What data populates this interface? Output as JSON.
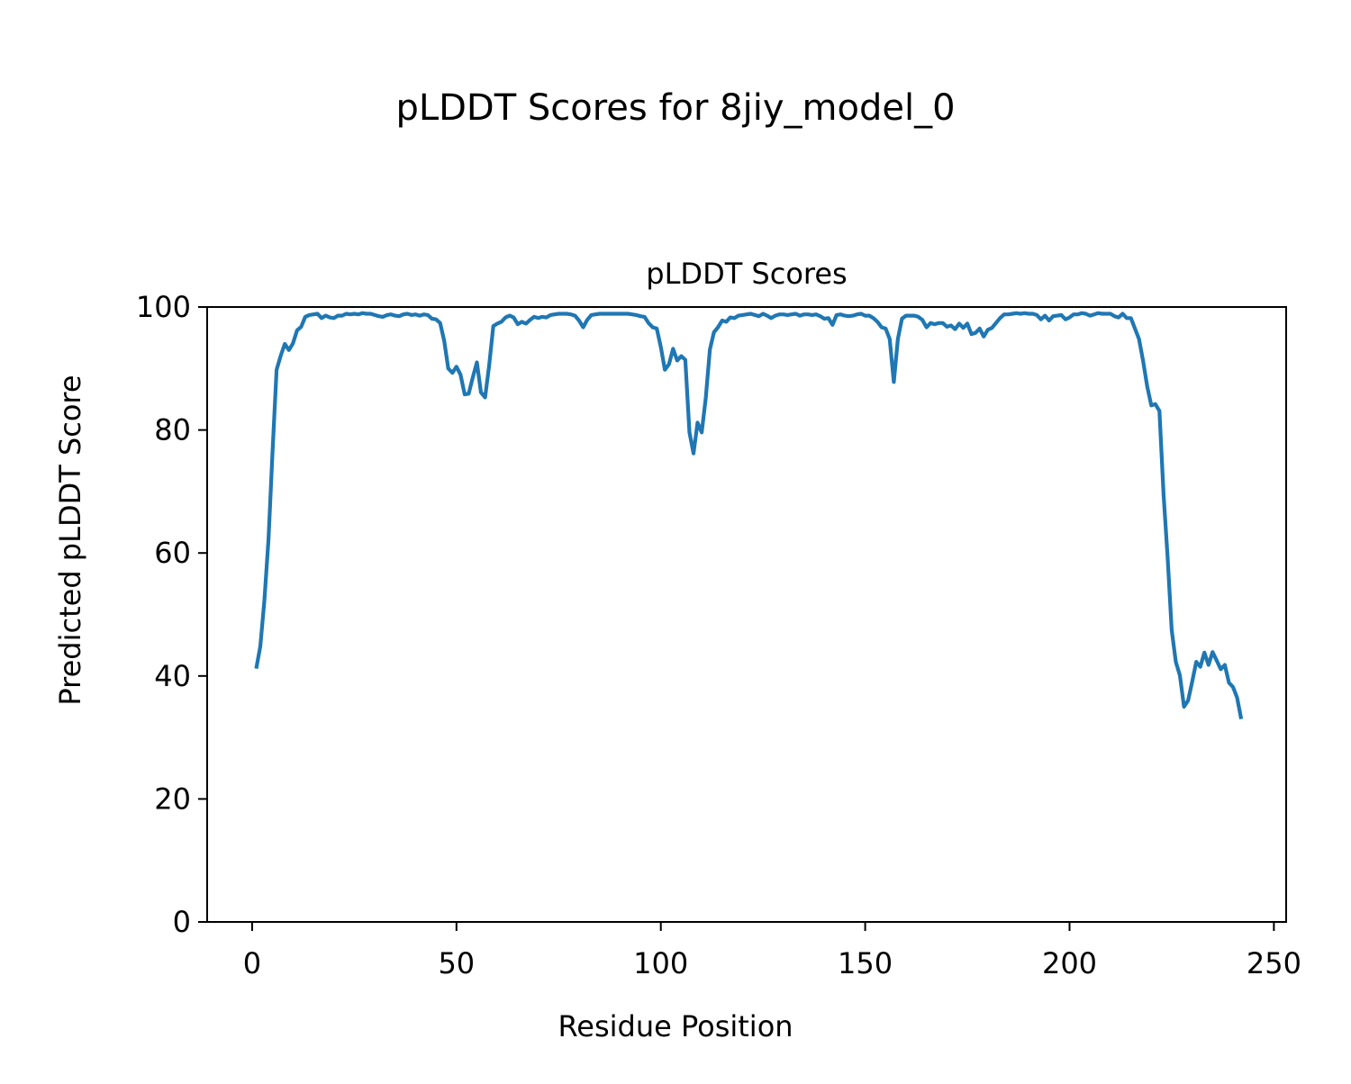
{
  "figure": {
    "suptitle": "pLDDT Scores for 8jiy_model_0"
  },
  "chart_data": {
    "type": "line",
    "title": "pLDDT Scores",
    "xlabel": "Residue Position",
    "ylabel": "Predicted pLDDT Score",
    "xlim": [
      -11,
      253
    ],
    "ylim": [
      0,
      100
    ],
    "xticks": [
      0,
      50,
      100,
      150,
      200,
      250
    ],
    "yticks": [
      0,
      20,
      40,
      60,
      80,
      100
    ],
    "grid": false,
    "line_color": "#1f77b4",
    "series": [
      {
        "x_start": 1,
        "values": [
          41.2,
          44.8,
          52.2,
          62.2,
          76.5,
          89.8,
          92.1,
          94.0,
          93.0,
          94.1,
          96.2,
          96.8,
          98.4,
          98.7,
          98.8,
          98.9,
          98.2,
          98.6,
          98.3,
          98.2,
          98.6,
          98.6,
          98.9,
          98.8,
          98.9,
          98.8,
          99.0,
          98.9,
          98.9,
          98.7,
          98.5,
          98.4,
          98.7,
          98.8,
          98.6,
          98.5,
          98.8,
          98.9,
          98.7,
          98.8,
          98.6,
          98.8,
          98.7,
          98.1,
          98.0,
          97.4,
          94.5,
          90.0,
          89.3,
          90.3,
          89.0,
          85.8,
          85.9,
          88.6,
          91.0,
          86.1,
          85.3,
          90.5,
          96.9,
          97.3,
          97.6,
          98.3,
          98.6,
          98.3,
          97.2,
          97.6,
          97.3,
          97.9,
          98.4,
          98.2,
          98.4,
          98.3,
          98.7,
          98.8,
          98.9,
          98.9,
          98.9,
          98.8,
          98.6,
          97.8,
          96.7,
          97.9,
          98.7,
          98.8,
          98.9,
          98.9,
          98.9,
          98.9,
          98.9,
          98.9,
          98.9,
          98.9,
          98.8,
          98.7,
          98.5,
          98.4,
          97.4,
          96.7,
          96.5,
          93.5,
          89.8,
          90.7,
          93.2,
          91.3,
          92.0,
          91.4,
          79.6,
          76.2,
          81.2,
          79.6,
          85.2,
          93.1,
          95.9,
          96.7,
          97.8,
          97.6,
          98.3,
          98.2,
          98.6,
          98.7,
          98.8,
          98.9,
          98.7,
          98.5,
          98.9,
          98.6,
          98.2,
          98.6,
          98.8,
          98.8,
          98.7,
          98.8,
          98.9,
          98.6,
          98.8,
          98.8,
          98.7,
          98.8,
          98.5,
          98.1,
          98.2,
          97.1,
          98.7,
          98.8,
          98.6,
          98.5,
          98.6,
          98.8,
          98.9,
          98.6,
          98.6,
          98.2,
          97.6,
          96.7,
          96.5,
          94.8,
          87.8,
          94.8,
          98.1,
          98.6,
          98.6,
          98.6,
          98.4,
          97.9,
          96.7,
          97.4,
          97.2,
          97.4,
          97.4,
          96.8,
          97.0,
          96.4,
          97.3,
          96.6,
          97.3,
          95.6,
          95.8,
          96.5,
          95.2,
          96.3,
          96.6,
          97.4,
          98.2,
          98.8,
          98.8,
          98.9,
          99.0,
          98.9,
          99.0,
          98.9,
          98.9,
          98.7,
          98.0,
          98.6,
          97.8,
          98.5,
          98.6,
          98.7,
          98.0,
          98.3,
          98.8,
          98.8,
          99.0,
          98.9,
          98.6,
          98.8,
          99.0,
          98.9,
          98.9,
          98.9,
          98.5,
          98.3,
          98.9,
          98.2,
          98.2,
          96.5,
          94.8,
          91.2,
          87.1,
          84.0,
          84.2,
          83.1,
          69.5,
          59.3,
          47.5,
          42.3,
          40.1,
          35.0,
          36.0,
          39.0,
          42.3,
          41.5,
          43.8,
          41.8,
          43.9,
          42.5,
          41.1,
          41.8,
          38.9,
          38.2,
          36.5,
          33.0
        ]
      }
    ]
  }
}
